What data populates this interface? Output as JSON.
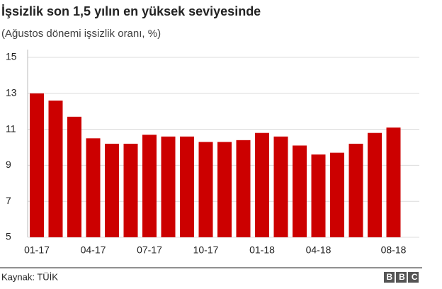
{
  "chart_data": {
    "type": "bar",
    "title": "İşsizlik son 1,5 yılın en yüksek seviyesinde",
    "subtitle": "(Ağustos dönemi işsizlik oranı, %)",
    "categories": [
      "01-17",
      null,
      null,
      "04-17",
      null,
      null,
      "07-17",
      null,
      null,
      "10-17",
      null,
      null,
      "01-18",
      null,
      null,
      "04-18",
      null,
      null,
      null,
      "08-18"
    ],
    "values": [
      13.0,
      12.6,
      11.7,
      10.5,
      10.2,
      10.2,
      10.7,
      10.6,
      10.6,
      10.3,
      10.3,
      10.4,
      10.8,
      10.6,
      10.1,
      9.6,
      9.7,
      10.2,
      10.8,
      11.1
    ],
    "color": "#cc0000",
    "ylim": [
      5,
      15
    ],
    "yticks": [
      5,
      7,
      9,
      11,
      13,
      15
    ],
    "grid": true,
    "source": "Kaynak: TÜİK",
    "logo": "BBC"
  }
}
